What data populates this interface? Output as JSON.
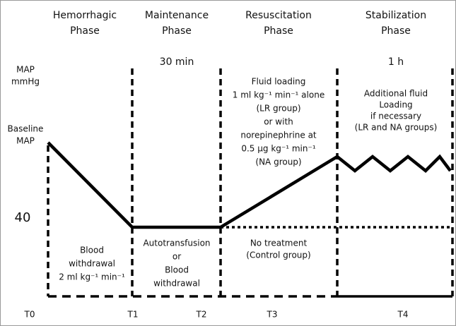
{
  "phases": [
    {
      "lines": [
        "Hemorrhagic",
        "Phase"
      ]
    },
    {
      "lines": [
        "Maintenance",
        "Phase"
      ]
    },
    {
      "lines": [
        "Resuscitation",
        "Phase"
      ]
    },
    {
      "lines": [
        "Stabilization",
        "Phase"
      ]
    }
  ],
  "durations": [
    "30 min",
    "1 h"
  ],
  "y_labels": {
    "map": [
      "MAP",
      "mmHg"
    ],
    "baseline": [
      "Baseline",
      "MAP"
    ],
    "forty": "40"
  },
  "upper_notes": {
    "resuscitation": [
      "Fluid loading",
      "1 ml kg⁻¹ min⁻¹ alone",
      "(LR group)",
      "or with",
      "norepinephrine at",
      "0.5 µg kg⁻¹ min⁻¹",
      "(NA group)"
    ],
    "stabilization": [
      "Additional fluid",
      "Loading",
      "if necessary",
      "(LR and NA groups)"
    ]
  },
  "lower_notes": {
    "hemorrhagic": [
      "Blood",
      "withdrawal",
      "2 ml kg⁻¹ min⁻¹"
    ],
    "maintenance": [
      "Autotransfusion",
      "or",
      "Blood",
      "withdrawal"
    ],
    "resuscitation": [
      "No treatment",
      "(Control group)"
    ]
  },
  "time_points": [
    "T0",
    "T1",
    "T2",
    "T3",
    "T4"
  ]
}
